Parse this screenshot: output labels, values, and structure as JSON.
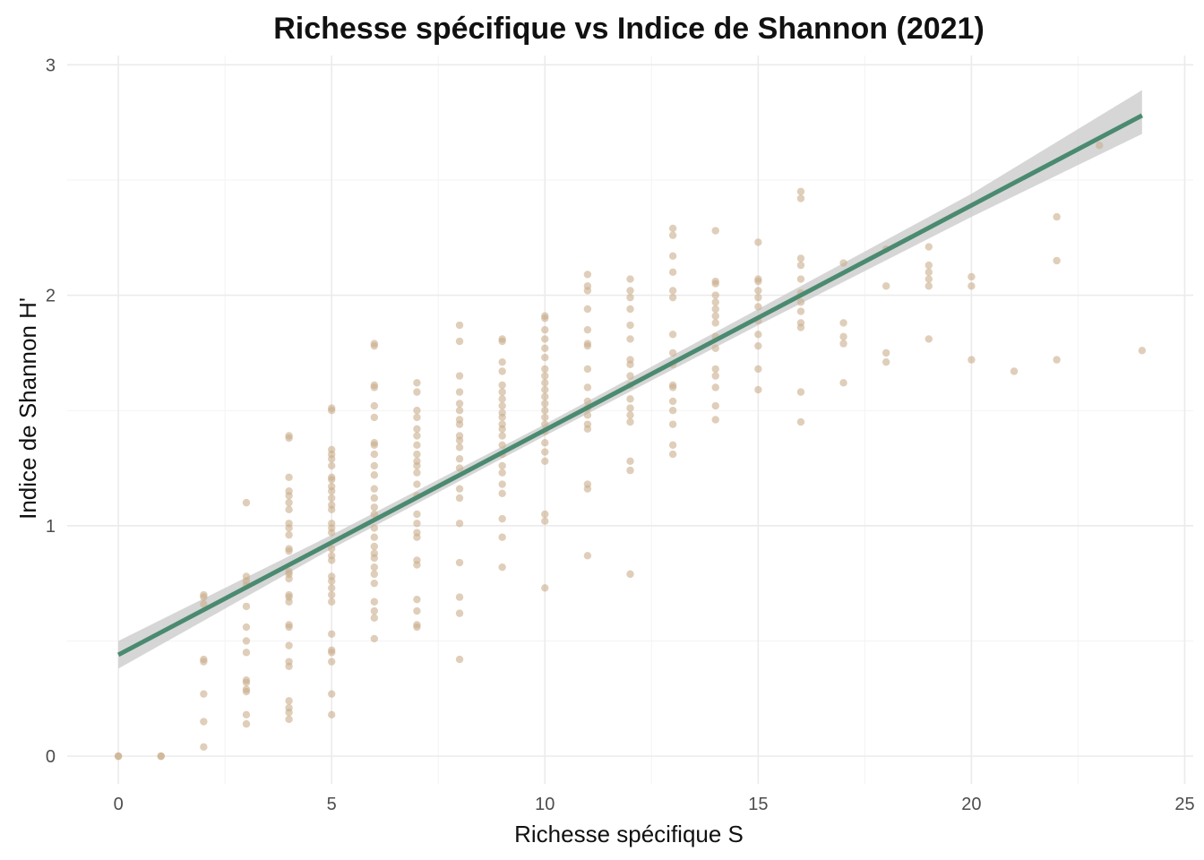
{
  "chart_data": {
    "type": "scatter",
    "title": "Richesse spécifique vs Indice de Shannon (2021)",
    "xlabel": "Richesse spécifique S",
    "ylabel": "Indice de Shannon H'",
    "xlim": [
      -1.2,
      25.2
    ],
    "ylim": [
      -0.12,
      3.04
    ],
    "xticks": [
      "0",
      "5",
      "10",
      "15",
      "20",
      "25"
    ],
    "xtick_values": [
      0,
      5,
      10,
      15,
      20,
      25
    ],
    "yticks": [
      "0",
      "1",
      "2",
      "3"
    ],
    "ytick_values": [
      0,
      1,
      2,
      3
    ],
    "grid": true,
    "point_color": "#c9ad8c",
    "line_color": "#4a8a70",
    "band_color": "#c8c8c8",
    "fit": {
      "intercept": 0.44,
      "slope": 0.0975,
      "x_start": 0,
      "x_end": 24
    },
    "confidence_band": [
      {
        "x": 0,
        "lo": 0.38,
        "hi": 0.5
      },
      {
        "x": 5,
        "lo": 0.9,
        "hi": 0.96
      },
      {
        "x": 10,
        "lo": 1.39,
        "hi": 1.44
      },
      {
        "x": 15,
        "lo": 1.87,
        "hi": 1.94
      },
      {
        "x": 20,
        "lo": 2.34,
        "hi": 2.44
      },
      {
        "x": 24,
        "lo": 2.7,
        "hi": 2.89
      }
    ],
    "points": [
      [
        0,
        0
      ],
      [
        0,
        0
      ],
      [
        1,
        0
      ],
      [
        1,
        0
      ],
      [
        2,
        0.7
      ],
      [
        2,
        0.69
      ],
      [
        2,
        0.66
      ],
      [
        2,
        0.42
      ],
      [
        2,
        0.41
      ],
      [
        2,
        0.27
      ],
      [
        2,
        0.15
      ],
      [
        2,
        0.04
      ],
      [
        3,
        1.1
      ],
      [
        3,
        0.78
      ],
      [
        3,
        0.76
      ],
      [
        3,
        0.74
      ],
      [
        3,
        0.65
      ],
      [
        3,
        0.56
      ],
      [
        3,
        0.5
      ],
      [
        3,
        0.45
      ],
      [
        3,
        0.33
      ],
      [
        3,
        0.32
      ],
      [
        3,
        0.29
      ],
      [
        3,
        0.28
      ],
      [
        3,
        0.18
      ],
      [
        3,
        0.14
      ],
      [
        4,
        1.39
      ],
      [
        4,
        1.38
      ],
      [
        4,
        1.21
      ],
      [
        4,
        1.15
      ],
      [
        4,
        1.13
      ],
      [
        4,
        1.1
      ],
      [
        4,
        1.07
      ],
      [
        4,
        1.01
      ],
      [
        4,
        0.99
      ],
      [
        4,
        0.96
      ],
      [
        4,
        0.9
      ],
      [
        4,
        0.89
      ],
      [
        4,
        0.8
      ],
      [
        4,
        0.79
      ],
      [
        4,
        0.77
      ],
      [
        4,
        0.7
      ],
      [
        4,
        0.69
      ],
      [
        4,
        0.67
      ],
      [
        4,
        0.57
      ],
      [
        4,
        0.56
      ],
      [
        4,
        0.48
      ],
      [
        4,
        0.41
      ],
      [
        4,
        0.39
      ],
      [
        4,
        0.24
      ],
      [
        4,
        0.21
      ],
      [
        4,
        0.19
      ],
      [
        4,
        0.16
      ],
      [
        5,
        1.51
      ],
      [
        5,
        1.5
      ],
      [
        5,
        1.33
      ],
      [
        5,
        1.31
      ],
      [
        5,
        1.29
      ],
      [
        5,
        1.26
      ],
      [
        5,
        1.21
      ],
      [
        5,
        1.2
      ],
      [
        5,
        1.17
      ],
      [
        5,
        1.15
      ],
      [
        5,
        1.12
      ],
      [
        5,
        1.09
      ],
      [
        5,
        1.07
      ],
      [
        5,
        1.01
      ],
      [
        5,
        0.99
      ],
      [
        5,
        0.97
      ],
      [
        5,
        0.9
      ],
      [
        5,
        0.87
      ],
      [
        5,
        0.85
      ],
      [
        5,
        0.78
      ],
      [
        5,
        0.76
      ],
      [
        5,
        0.73
      ],
      [
        5,
        0.7
      ],
      [
        5,
        0.67
      ],
      [
        5,
        0.53
      ],
      [
        5,
        0.46
      ],
      [
        5,
        0.45
      ],
      [
        5,
        0.41
      ],
      [
        5,
        0.27
      ],
      [
        5,
        0.18
      ],
      [
        6,
        1.79
      ],
      [
        6,
        1.78
      ],
      [
        6,
        1.61
      ],
      [
        6,
        1.6
      ],
      [
        6,
        1.52
      ],
      [
        6,
        1.47
      ],
      [
        6,
        1.36
      ],
      [
        6,
        1.35
      ],
      [
        6,
        1.31
      ],
      [
        6,
        1.26
      ],
      [
        6,
        1.22
      ],
      [
        6,
        1.16
      ],
      [
        6,
        1.12
      ],
      [
        6,
        1.08
      ],
      [
        6,
        1.05
      ],
      [
        6,
        0.99
      ],
      [
        6,
        0.95
      ],
      [
        6,
        0.91
      ],
      [
        6,
        0.88
      ],
      [
        6,
        0.86
      ],
      [
        6,
        0.82
      ],
      [
        6,
        0.79
      ],
      [
        6,
        0.75
      ],
      [
        6,
        0.67
      ],
      [
        6,
        0.63
      ],
      [
        6,
        0.6
      ],
      [
        6,
        0.51
      ],
      [
        7,
        1.62
      ],
      [
        7,
        1.58
      ],
      [
        7,
        1.5
      ],
      [
        7,
        1.47
      ],
      [
        7,
        1.42
      ],
      [
        7,
        1.39
      ],
      [
        7,
        1.35
      ],
      [
        7,
        1.31
      ],
      [
        7,
        1.28
      ],
      [
        7,
        1.26
      ],
      [
        7,
        1.23
      ],
      [
        7,
        1.18
      ],
      [
        7,
        1.13
      ],
      [
        7,
        1.05
      ],
      [
        7,
        1.01
      ],
      [
        7,
        0.97
      ],
      [
        7,
        0.95
      ],
      [
        7,
        0.85
      ],
      [
        7,
        0.83
      ],
      [
        7,
        0.68
      ],
      [
        7,
        0.63
      ],
      [
        7,
        0.57
      ],
      [
        7,
        0.56
      ],
      [
        8,
        1.87
      ],
      [
        8,
        1.8
      ],
      [
        8,
        1.65
      ],
      [
        8,
        1.58
      ],
      [
        8,
        1.53
      ],
      [
        8,
        1.5
      ],
      [
        8,
        1.46
      ],
      [
        8,
        1.44
      ],
      [
        8,
        1.39
      ],
      [
        8,
        1.37
      ],
      [
        8,
        1.34
      ],
      [
        8,
        1.29
      ],
      [
        8,
        1.25
      ],
      [
        8,
        1.16
      ],
      [
        8,
        1.12
      ],
      [
        8,
        1.01
      ],
      [
        8,
        0.84
      ],
      [
        8,
        0.69
      ],
      [
        8,
        0.62
      ],
      [
        8,
        0.42
      ],
      [
        9,
        1.81
      ],
      [
        9,
        1.8
      ],
      [
        9,
        1.71
      ],
      [
        9,
        1.67
      ],
      [
        9,
        1.61
      ],
      [
        9,
        1.58
      ],
      [
        9,
        1.55
      ],
      [
        9,
        1.52
      ],
      [
        9,
        1.49
      ],
      [
        9,
        1.47
      ],
      [
        9,
        1.44
      ],
      [
        9,
        1.42
      ],
      [
        9,
        1.39
      ],
      [
        9,
        1.35
      ],
      [
        9,
        1.31
      ],
      [
        9,
        1.26
      ],
      [
        9,
        1.23
      ],
      [
        9,
        1.18
      ],
      [
        9,
        1.14
      ],
      [
        9,
        1.03
      ],
      [
        9,
        0.95
      ],
      [
        9,
        0.82
      ],
      [
        10,
        1.91
      ],
      [
        10,
        1.9
      ],
      [
        10,
        1.85
      ],
      [
        10,
        1.81
      ],
      [
        10,
        1.77
      ],
      [
        10,
        1.73
      ],
      [
        10,
        1.68
      ],
      [
        10,
        1.65
      ],
      [
        10,
        1.62
      ],
      [
        10,
        1.59
      ],
      [
        10,
        1.56
      ],
      [
        10,
        1.53
      ],
      [
        10,
        1.5
      ],
      [
        10,
        1.47
      ],
      [
        10,
        1.44
      ],
      [
        10,
        1.41
      ],
      [
        10,
        1.36
      ],
      [
        10,
        1.32
      ],
      [
        10,
        1.28
      ],
      [
        10,
        1.05
      ],
      [
        10,
        1.02
      ],
      [
        10,
        0.73
      ],
      [
        11,
        2.09
      ],
      [
        11,
        2.04
      ],
      [
        11,
        2.02
      ],
      [
        11,
        1.94
      ],
      [
        11,
        1.85
      ],
      [
        11,
        1.79
      ],
      [
        11,
        1.78
      ],
      [
        11,
        1.68
      ],
      [
        11,
        1.6
      ],
      [
        11,
        1.54
      ],
      [
        11,
        1.51
      ],
      [
        11,
        1.48
      ],
      [
        11,
        1.44
      ],
      [
        11,
        1.42
      ],
      [
        11,
        1.18
      ],
      [
        11,
        1.16
      ],
      [
        11,
        0.87
      ],
      [
        12,
        2.07
      ],
      [
        12,
        2.02
      ],
      [
        12,
        1.99
      ],
      [
        12,
        1.94
      ],
      [
        12,
        1.87
      ],
      [
        12,
        1.81
      ],
      [
        12,
        1.72
      ],
      [
        12,
        1.7
      ],
      [
        12,
        1.65
      ],
      [
        12,
        1.61
      ],
      [
        12,
        1.55
      ],
      [
        12,
        1.51
      ],
      [
        12,
        1.48
      ],
      [
        12,
        1.45
      ],
      [
        12,
        1.28
      ],
      [
        12,
        1.24
      ],
      [
        12,
        0.79
      ],
      [
        13,
        2.29
      ],
      [
        13,
        2.26
      ],
      [
        13,
        2.17
      ],
      [
        13,
        2.1
      ],
      [
        13,
        2.02
      ],
      [
        13,
        1.99
      ],
      [
        13,
        1.83
      ],
      [
        13,
        1.75
      ],
      [
        13,
        1.7
      ],
      [
        13,
        1.61
      ],
      [
        13,
        1.6
      ],
      [
        13,
        1.54
      ],
      [
        13,
        1.5
      ],
      [
        13,
        1.44
      ],
      [
        13,
        1.35
      ],
      [
        13,
        1.31
      ],
      [
        14,
        2.28
      ],
      [
        14,
        2.06
      ],
      [
        14,
        2.05
      ],
      [
        14,
        2.0
      ],
      [
        14,
        1.97
      ],
      [
        14,
        1.94
      ],
      [
        14,
        1.91
      ],
      [
        14,
        1.88
      ],
      [
        14,
        1.82
      ],
      [
        14,
        1.77
      ],
      [
        14,
        1.68
      ],
      [
        14,
        1.65
      ],
      [
        14,
        1.6
      ],
      [
        14,
        1.52
      ],
      [
        14,
        1.46
      ],
      [
        15,
        2.23
      ],
      [
        15,
        2.07
      ],
      [
        15,
        2.06
      ],
      [
        15,
        2.02
      ],
      [
        15,
        1.99
      ],
      [
        15,
        1.95
      ],
      [
        15,
        1.89
      ],
      [
        15,
        1.83
      ],
      [
        15,
        1.78
      ],
      [
        15,
        1.68
      ],
      [
        15,
        1.59
      ],
      [
        16,
        2.45
      ],
      [
        16,
        2.42
      ],
      [
        16,
        2.16
      ],
      [
        16,
        2.13
      ],
      [
        16,
        2.07
      ],
      [
        16,
        2.01
      ],
      [
        16,
        1.97
      ],
      [
        16,
        1.93
      ],
      [
        16,
        1.88
      ],
      [
        16,
        1.86
      ],
      [
        16,
        1.58
      ],
      [
        16,
        1.45
      ],
      [
        17,
        2.14
      ],
      [
        17,
        1.88
      ],
      [
        17,
        1.82
      ],
      [
        17,
        1.79
      ],
      [
        17,
        1.62
      ],
      [
        18,
        2.2
      ],
      [
        18,
        2.04
      ],
      [
        18,
        1.75
      ],
      [
        18,
        1.71
      ],
      [
        19,
        2.21
      ],
      [
        19,
        2.13
      ],
      [
        19,
        2.1
      ],
      [
        19,
        2.07
      ],
      [
        19,
        2.04
      ],
      [
        19,
        1.81
      ],
      [
        20,
        2.08
      ],
      [
        20,
        2.04
      ],
      [
        20,
        1.72
      ],
      [
        21,
        1.67
      ],
      [
        22,
        2.34
      ],
      [
        22,
        2.15
      ],
      [
        22,
        1.72
      ],
      [
        23,
        2.65
      ],
      [
        24,
        1.76
      ]
    ]
  }
}
